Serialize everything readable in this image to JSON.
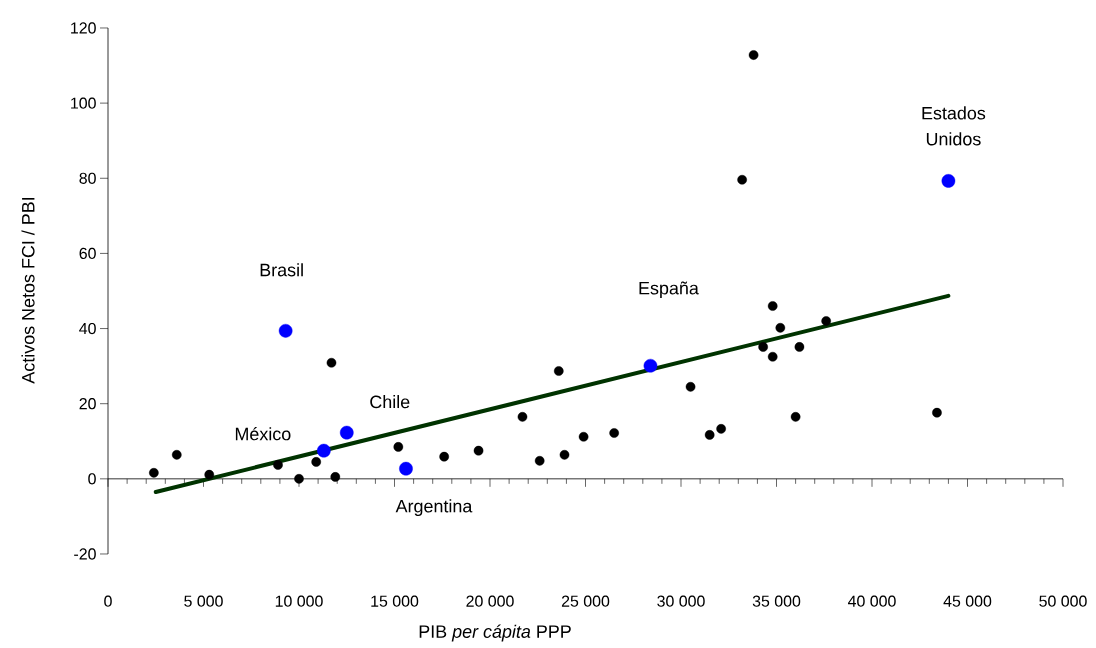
{
  "chart_data": {
    "type": "scatter",
    "xlabel": "PIB *per cápita* PPP",
    "ylabel": "Activos Netos FCI / PBI",
    "xlim": [
      0,
      50000
    ],
    "ylim": [
      -20,
      120
    ],
    "xticks": [
      0,
      {
        "value": 5000,
        "label": "5 000"
      },
      {
        "value": 10000,
        "label": "10 000"
      },
      {
        "value": 15000,
        "label": "15 000"
      },
      {
        "value": 20000,
        "label": "20 000"
      },
      {
        "value": 25000,
        "label": "25 000"
      },
      {
        "value": 30000,
        "label": "30 000"
      },
      {
        "value": 35000,
        "label": "35 000"
      },
      {
        "value": 40000,
        "label": "40 000"
      },
      {
        "value": 45000,
        "label": "45 000"
      },
      {
        "value": 50000,
        "label": "50 000"
      }
    ],
    "yticks": [
      -20,
      0,
      20,
      40,
      60,
      80,
      100,
      120
    ],
    "marker": "circle",
    "series": [
      {
        "color": "#000000",
        "x": [
          2400,
          3600,
          5300,
          8900,
          10000,
          10900,
          11700,
          11900,
          15200,
          17600,
          19400,
          21700,
          22600,
          23600,
          23900,
          24900,
          26500,
          30500,
          31500,
          32100,
          33200,
          33800,
          34300,
          34800,
          35200,
          34800,
          36200,
          36000,
          37600,
          43400
        ],
        "values": [
          1.6,
          6.4,
          1.1,
          3.7,
          0,
          4.5,
          30.9,
          0.5,
          8.5,
          5.9,
          7.5,
          16.5,
          4.8,
          28.7,
          6.4,
          11.2,
          12.2,
          24.5,
          11.7,
          13.3,
          79.6,
          112.8,
          35.1,
          46.0,
          40.2,
          32.5,
          35.1,
          16.5,
          42.0,
          17.6
        ]
      },
      {
        "color": "#0000ff",
        "x": [
          9300,
          11300,
          12500,
          15600,
          28400,
          44000
        ],
        "values": [
          39.4,
          7.5,
          12.3,
          2.7,
          30.1,
          79.3
        ]
      },
      {
        "type": "line",
        "color": "#003300",
        "marker": "none",
        "x": [
          2500,
          44000
        ],
        "values": [
          -3.5,
          48.7
        ]
      }
    ],
    "annotations": [
      "Brasil",
      "México",
      "Chile",
      "Argentina",
      "España",
      "Estados Unidos"
    ]
  }
}
